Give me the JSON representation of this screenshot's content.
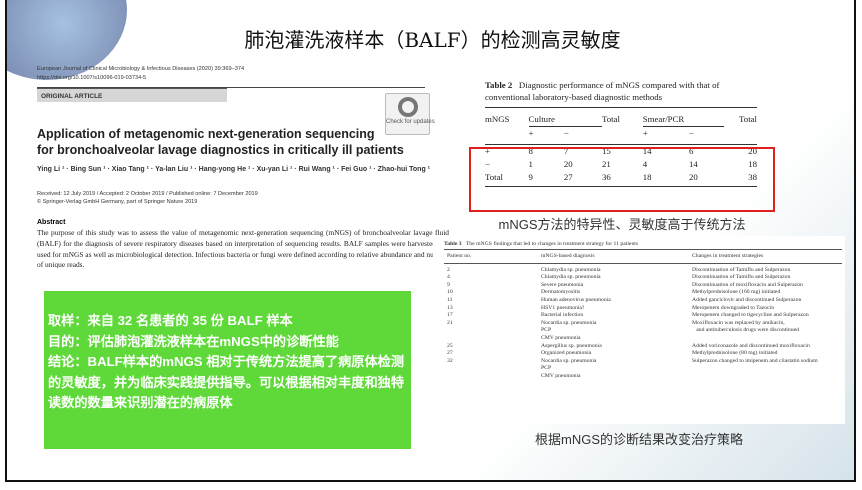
{
  "slide": {
    "title": "肺泡灌洗液样本（BALF）的检测高灵敏度"
  },
  "paper": {
    "journal": "European Journal of Clinical Microbiology & Infectious Diseases (2020) 39:369–374",
    "doi": "https://doi.org/10.1007/s10096-019-03734-5",
    "section": "ORIGINAL ARTICLE",
    "check_updates": "Check for updates",
    "title_line1": "Application of metagenomic next-generation sequencing",
    "title_line2": "for bronchoalveolar lavage diagnostics in critically ill patients",
    "authors": "Ying Li ¹ · Bing Sun ¹ · Xiao Tang ¹ · Ya-lan Liu ¹ · Hang-yong He ¹ · Xu-yan Li ¹ · Rui Wang ¹ · Fei Guo ¹ · Zhao-hui Tong ¹",
    "dates": "Received: 12 July 2019 / Accepted: 2 October 2019 / Published online: 7 December 2019",
    "copyright": "© Springer-Verlag GmbH Germany, part of Springer Nature 2019",
    "abstract_heading": "Abstract",
    "abstract_text": "The purpose of this study was to assess the value of metagenomic next-generation sequencing (mNGS) of bronchoalveolar lavage fluid (BALF) for the diagnosis of severe respiratory diseases based on interpretation of sequencing results. BALF samples were harvested and used for mNGS as well as microbiological detection. Infectious bacteria or fungi were defined according to relative abundance and number of unique reads."
  },
  "summary": {
    "line1": "取样：来自 32 名患者的 35 份 BALF 样本",
    "line2": "目的：评估肺泡灌洗液样本在mNGS中的诊断性能",
    "line3": "结论：BALF样本的mNGS 相对于传统方法提高了病原体检测的灵敏度，并为临床实践提供指导。可以根据相对丰度和独特读数的数量来识别潜在的病原体"
  },
  "table2": {
    "caption_label": "Table 2",
    "caption": "Diagnostic performance of mNGS compared with that of conventional laboratory-based diagnostic methods",
    "headers": [
      "mNGS",
      "Culture",
      "",
      "Total",
      "Smear/PCR",
      "",
      "Total"
    ],
    "subheaders": [
      "",
      "+",
      "−",
      "",
      "+",
      "−",
      ""
    ],
    "rows": [
      [
        "+",
        "8",
        "7",
        "15",
        "14",
        "6",
        "20"
      ],
      [
        "−",
        "1",
        "20",
        "21",
        "4",
        "14",
        "18"
      ],
      [
        "Total",
        "9",
        "27",
        "36",
        "18",
        "20",
        "38"
      ]
    ],
    "highlight_color": "#e0201e",
    "note": "mNGS方法的特异性、灵敏度高于传统方法"
  },
  "table3": {
    "caption_label": "Table 3",
    "caption": "The mNGS findings that led to changes in treatment strategy for 11 patients",
    "headers": [
      "Patient no.",
      "mNGS-based diagnosis",
      "Changes in treatment strategies"
    ],
    "rows": [
      [
        "2",
        "Chlamydia sp. pneumonia",
        "Discontinuation of Tamiflu and Sulperazon"
      ],
      [
        "4",
        "Chlamydia sp. pneumonia",
        "Discontinuation of Tamiflu and Sulperazon"
      ],
      [
        "9",
        "Severe pneumonia",
        "Discontinuation of moxifloxacin and Sulperazon"
      ],
      [
        "10",
        "Dermatomyositis",
        "Methylprednisolone (160 mg) initiated"
      ],
      [
        "11",
        "Human adenovirus pneumonia",
        "Added ganciclovir and discontinued Sulperazon"
      ],
      [
        "13",
        "HSV1 pneumonia?",
        "Meropenem downgraded to Tazocin"
      ],
      [
        "17",
        "Bacterial infection",
        "Meropenem changed to tigecycline and Sulperazon"
      ],
      [
        "21",
        "Nocardia sp. pneumonia",
        "Moxifloxacin was replaced by amikacin,"
      ],
      [
        "",
        "PCP",
        "   and antituberculosis drugs were discontinued"
      ],
      [
        "",
        "CMV pneumonia",
        ""
      ],
      [
        "25",
        "Aspergillus sp. pneumonia",
        "Added voriconazole and discontinued moxifloxacin"
      ],
      [
        "27",
        "Organized pneumonia",
        "Methylprednisolone (80 mg) initiated"
      ],
      [
        "32",
        "Nocardia sp. pneumonia",
        "Sulperazon changed to imipenem and cilastatin sodium"
      ],
      [
        "",
        "PCP",
        ""
      ],
      [
        "",
        "CMV pneumonia",
        ""
      ]
    ],
    "note": "根据mNGS的诊断结果改变治疗策略"
  },
  "colors": {
    "summary_bg": "#5fd93a",
    "highlight": "#e0201e"
  }
}
